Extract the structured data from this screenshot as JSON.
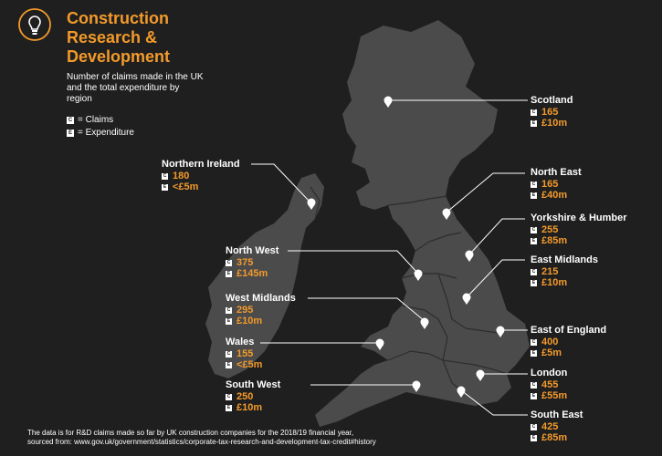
{
  "title": {
    "line1": "Construction",
    "line2": "Research &",
    "line3": "Development"
  },
  "subtitle": "Number of claims made in the UK and the total expenditure by region",
  "legend": {
    "claims_key": "C",
    "claims_label": "= Claims",
    "expenditure_key": "E",
    "expenditure_label": "= Expenditure"
  },
  "regions": [
    {
      "name": "Scotland",
      "claims": "165",
      "expenditure": "£10m"
    },
    {
      "name": "Northern Ireland",
      "claims": "180",
      "expenditure": "<£5m"
    },
    {
      "name": "North East",
      "claims": "165",
      "expenditure": "£40m"
    },
    {
      "name": "Yorkshire & Humber",
      "claims": "255",
      "expenditure": "£85m"
    },
    {
      "name": "North West",
      "claims": "375",
      "expenditure": "£145m"
    },
    {
      "name": "East Midlands",
      "claims": "215",
      "expenditure": "£10m"
    },
    {
      "name": "West Midlands",
      "claims": "295",
      "expenditure": "£10m"
    },
    {
      "name": "Wales",
      "claims": "155",
      "expenditure": "<£5m"
    },
    {
      "name": "East of England",
      "claims": "400",
      "expenditure": "£5m"
    },
    {
      "name": "London",
      "claims": "455",
      "expenditure": "£55m"
    },
    {
      "name": "South West",
      "claims": "250",
      "expenditure": "£10m"
    },
    {
      "name": "South East",
      "claims": "425",
      "expenditure": "£85m"
    }
  ],
  "footnote": {
    "line1": "The data is for R&D claims made so far by UK construction companies for the 2018/19 financial year,",
    "line2": "sourced from: www.gov.uk/government/statistics/corporate-tax-research-and-development-tax-credit#history"
  },
  "colors": {
    "background": "#1f1f1f",
    "land": "#4b4b4b",
    "accent": "#f39a2b",
    "text": "#ffffff"
  },
  "icons": {
    "logo": "lightbulb-icon",
    "pin": "map-pin-icon"
  }
}
